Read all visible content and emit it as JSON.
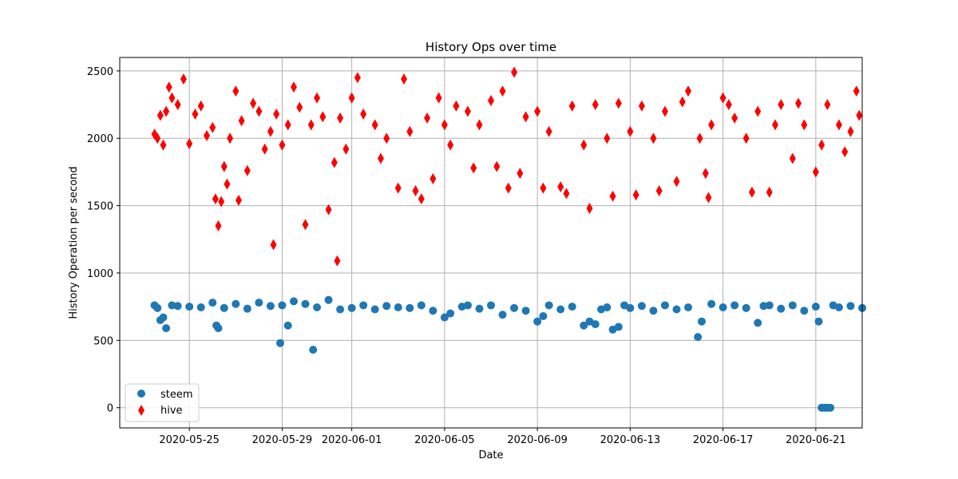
{
  "chart_data": {
    "type": "scatter",
    "title": "History Ops over time",
    "xlabel": "Date",
    "ylabel": "History Operation per second",
    "x_axis": {
      "type": "date",
      "range": [
        "2020-05-22",
        "2020-06-23"
      ]
    },
    "ylim": [
      -150,
      2600
    ],
    "x_ticks": [
      "2020-05-25",
      "2020-05-29",
      "2020-06-01",
      "2020-06-05",
      "2020-06-09",
      "2020-06-13",
      "2020-06-17",
      "2020-06-21"
    ],
    "y_ticks": [
      0,
      500,
      1000,
      1500,
      2000,
      2500
    ],
    "grid": true,
    "legend": {
      "position": "lower-left"
    },
    "series": [
      {
        "name": "steem",
        "color": "#1f77b4",
        "marker": "circle",
        "points": [
          [
            "2020-05-23 12:00",
            760
          ],
          [
            "2020-05-23 15:00",
            740
          ],
          [
            "2020-05-23 18:00",
            650
          ],
          [
            "2020-05-23 21:00",
            670
          ],
          [
            "2020-05-24 00:00",
            590
          ],
          [
            "2020-05-24 06:00",
            760
          ],
          [
            "2020-05-24 12:00",
            755
          ],
          [
            "2020-05-25 00:00",
            750
          ],
          [
            "2020-05-25 12:00",
            745
          ],
          [
            "2020-05-26 00:00",
            780
          ],
          [
            "2020-05-26 04:00",
            610
          ],
          [
            "2020-05-26 06:00",
            590
          ],
          [
            "2020-05-26 12:00",
            740
          ],
          [
            "2020-05-27 00:00",
            770
          ],
          [
            "2020-05-27 12:00",
            735
          ],
          [
            "2020-05-28 00:00",
            780
          ],
          [
            "2020-05-28 12:00",
            755
          ],
          [
            "2020-05-29 00:00",
            760
          ],
          [
            "2020-05-28 22:00",
            480
          ],
          [
            "2020-05-29 06:00",
            610
          ],
          [
            "2020-05-29 12:00",
            790
          ],
          [
            "2020-05-30 00:00",
            770
          ],
          [
            "2020-05-30 08:00",
            430
          ],
          [
            "2020-05-30 12:00",
            745
          ],
          [
            "2020-05-31 00:00",
            800
          ],
          [
            "2020-05-31 12:00",
            730
          ],
          [
            "2020-06-01 00:00",
            740
          ],
          [
            "2020-06-01 12:00",
            760
          ],
          [
            "2020-06-02 00:00",
            730
          ],
          [
            "2020-06-02 12:00",
            755
          ],
          [
            "2020-06-03 00:00",
            745
          ],
          [
            "2020-06-03 12:00",
            740
          ],
          [
            "2020-06-04 00:00",
            760
          ],
          [
            "2020-06-04 12:00",
            720
          ],
          [
            "2020-06-05 00:00",
            670
          ],
          [
            "2020-06-05 06:00",
            700
          ],
          [
            "2020-06-05 18:00",
            750
          ],
          [
            "2020-06-06 00:00",
            760
          ],
          [
            "2020-06-06 12:00",
            735
          ],
          [
            "2020-06-07 00:00",
            760
          ],
          [
            "2020-06-07 12:00",
            690
          ],
          [
            "2020-06-08 00:00",
            740
          ],
          [
            "2020-06-08 12:00",
            720
          ],
          [
            "2020-06-09 00:00",
            640
          ],
          [
            "2020-06-09 06:00",
            680
          ],
          [
            "2020-06-09 12:00",
            760
          ],
          [
            "2020-06-10 00:00",
            730
          ],
          [
            "2020-06-10 12:00",
            750
          ],
          [
            "2020-06-11 00:00",
            610
          ],
          [
            "2020-06-11 06:00",
            640
          ],
          [
            "2020-06-11 12:00",
            620
          ],
          [
            "2020-06-11 18:00",
            730
          ],
          [
            "2020-06-12 00:00",
            745
          ],
          [
            "2020-06-12 06:00",
            580
          ],
          [
            "2020-06-12 12:00",
            600
          ],
          [
            "2020-06-12 18:00",
            760
          ],
          [
            "2020-06-13 00:00",
            740
          ],
          [
            "2020-06-13 12:00",
            755
          ],
          [
            "2020-06-14 00:00",
            720
          ],
          [
            "2020-06-14 12:00",
            760
          ],
          [
            "2020-06-15 00:00",
            730
          ],
          [
            "2020-06-15 12:00",
            745
          ],
          [
            "2020-06-15 22:00",
            525
          ],
          [
            "2020-06-16 02:00",
            640
          ],
          [
            "2020-06-16 12:00",
            770
          ],
          [
            "2020-06-17 00:00",
            745
          ],
          [
            "2020-06-17 12:00",
            760
          ],
          [
            "2020-06-18 00:00",
            740
          ],
          [
            "2020-06-18 12:00",
            630
          ],
          [
            "2020-06-18 18:00",
            755
          ],
          [
            "2020-06-19 00:00",
            760
          ],
          [
            "2020-06-19 12:00",
            735
          ],
          [
            "2020-06-20 00:00",
            760
          ],
          [
            "2020-06-20 12:00",
            720
          ],
          [
            "2020-06-21 00:00",
            750
          ],
          [
            "2020-06-21 03:00",
            640
          ],
          [
            "2020-06-21 06:00",
            0
          ],
          [
            "2020-06-21 09:00",
            0
          ],
          [
            "2020-06-21 12:00",
            0
          ],
          [
            "2020-06-21 15:00",
            0
          ],
          [
            "2020-06-21 18:00",
            760
          ],
          [
            "2020-06-22 00:00",
            745
          ],
          [
            "2020-06-22 12:00",
            755
          ],
          [
            "2020-06-23 00:00",
            740
          ]
        ]
      },
      {
        "name": "hive",
        "color": "#ff0000",
        "marker": "thin_diamond",
        "points": [
          [
            "2020-05-23 12:00",
            2030
          ],
          [
            "2020-05-23 15:00",
            2000
          ],
          [
            "2020-05-23 18:00",
            2170
          ],
          [
            "2020-05-23 21:00",
            1950
          ],
          [
            "2020-05-24 00:00",
            2200
          ],
          [
            "2020-05-24 03:00",
            2380
          ],
          [
            "2020-05-24 06:00",
            2300
          ],
          [
            "2020-05-24 12:00",
            2250
          ],
          [
            "2020-05-24 18:00",
            2440
          ],
          [
            "2020-05-25 00:00",
            1960
          ],
          [
            "2020-05-25 06:00",
            2180
          ],
          [
            "2020-05-25 12:00",
            2240
          ],
          [
            "2020-05-25 18:00",
            2020
          ],
          [
            "2020-05-26 00:00",
            2080
          ],
          [
            "2020-05-26 03:00",
            1550
          ],
          [
            "2020-05-26 06:00",
            1350
          ],
          [
            "2020-05-26 09:00",
            1530
          ],
          [
            "2020-05-26 12:00",
            1790
          ],
          [
            "2020-05-26 15:00",
            1660
          ],
          [
            "2020-05-26 18:00",
            2000
          ],
          [
            "2020-05-27 00:00",
            2350
          ],
          [
            "2020-05-27 03:00",
            1540
          ],
          [
            "2020-05-27 06:00",
            2130
          ],
          [
            "2020-05-27 12:00",
            1760
          ],
          [
            "2020-05-27 18:00",
            2260
          ],
          [
            "2020-05-28 00:00",
            2200
          ],
          [
            "2020-05-28 06:00",
            1920
          ],
          [
            "2020-05-28 12:00",
            2050
          ],
          [
            "2020-05-28 15:00",
            1210
          ],
          [
            "2020-05-28 18:00",
            2180
          ],
          [
            "2020-05-29 00:00",
            1950
          ],
          [
            "2020-05-29 06:00",
            2100
          ],
          [
            "2020-05-29 12:00",
            2380
          ],
          [
            "2020-05-29 18:00",
            2230
          ],
          [
            "2020-05-30 00:00",
            1360
          ],
          [
            "2020-05-30 06:00",
            2100
          ],
          [
            "2020-05-30 12:00",
            2300
          ],
          [
            "2020-05-30 18:00",
            2160
          ],
          [
            "2020-05-31 00:00",
            1470
          ],
          [
            "2020-05-31 06:00",
            1820
          ],
          [
            "2020-05-31 09:00",
            1090
          ],
          [
            "2020-05-31 12:00",
            2150
          ],
          [
            "2020-05-31 18:00",
            1920
          ],
          [
            "2020-06-01 00:00",
            2300
          ],
          [
            "2020-06-01 06:00",
            2450
          ],
          [
            "2020-06-01 12:00",
            2180
          ],
          [
            "2020-06-02 00:00",
            2100
          ],
          [
            "2020-06-02 06:00",
            1850
          ],
          [
            "2020-06-02 12:00",
            2000
          ],
          [
            "2020-06-03 00:00",
            1630
          ],
          [
            "2020-06-03 06:00",
            2440
          ],
          [
            "2020-06-03 12:00",
            2050
          ],
          [
            "2020-06-03 18:00",
            1610
          ],
          [
            "2020-06-04 00:00",
            1550
          ],
          [
            "2020-06-04 06:00",
            2150
          ],
          [
            "2020-06-04 12:00",
            1700
          ],
          [
            "2020-06-04 18:00",
            2300
          ],
          [
            "2020-06-05 00:00",
            2100
          ],
          [
            "2020-06-05 06:00",
            1950
          ],
          [
            "2020-06-05 12:00",
            2240
          ],
          [
            "2020-06-06 00:00",
            2200
          ],
          [
            "2020-06-06 06:00",
            1780
          ],
          [
            "2020-06-06 12:00",
            2100
          ],
          [
            "2020-06-07 00:00",
            2280
          ],
          [
            "2020-06-07 06:00",
            1790
          ],
          [
            "2020-06-07 12:00",
            2350
          ],
          [
            "2020-06-07 18:00",
            1630
          ],
          [
            "2020-06-08 00:00",
            2490
          ],
          [
            "2020-06-08 06:00",
            1740
          ],
          [
            "2020-06-08 12:00",
            2160
          ],
          [
            "2020-06-09 00:00",
            2200
          ],
          [
            "2020-06-09 06:00",
            1630
          ],
          [
            "2020-06-09 12:00",
            2050
          ],
          [
            "2020-06-10 00:00",
            1640
          ],
          [
            "2020-06-10 06:00",
            1590
          ],
          [
            "2020-06-10 12:00",
            2240
          ],
          [
            "2020-06-11 00:00",
            1950
          ],
          [
            "2020-06-11 06:00",
            1480
          ],
          [
            "2020-06-11 12:00",
            2250
          ],
          [
            "2020-06-12 00:00",
            2000
          ],
          [
            "2020-06-12 06:00",
            1570
          ],
          [
            "2020-06-12 12:00",
            2260
          ],
          [
            "2020-06-13 00:00",
            2050
          ],
          [
            "2020-06-13 06:00",
            1580
          ],
          [
            "2020-06-13 12:00",
            2240
          ],
          [
            "2020-06-14 00:00",
            2000
          ],
          [
            "2020-06-14 06:00",
            1610
          ],
          [
            "2020-06-14 12:00",
            2200
          ],
          [
            "2020-06-15 00:00",
            1680
          ],
          [
            "2020-06-15 06:00",
            2270
          ],
          [
            "2020-06-15 12:00",
            2350
          ],
          [
            "2020-06-16 00:00",
            2000
          ],
          [
            "2020-06-16 06:00",
            1740
          ],
          [
            "2020-06-16 09:00",
            1560
          ],
          [
            "2020-06-16 12:00",
            2100
          ],
          [
            "2020-06-17 00:00",
            2300
          ],
          [
            "2020-06-17 06:00",
            2250
          ],
          [
            "2020-06-17 12:00",
            2150
          ],
          [
            "2020-06-18 00:00",
            2000
          ],
          [
            "2020-06-18 06:00",
            1600
          ],
          [
            "2020-06-18 12:00",
            2200
          ],
          [
            "2020-06-19 00:00",
            1600
          ],
          [
            "2020-06-19 06:00",
            2100
          ],
          [
            "2020-06-19 12:00",
            2250
          ],
          [
            "2020-06-20 00:00",
            1850
          ],
          [
            "2020-06-20 06:00",
            2260
          ],
          [
            "2020-06-20 12:00",
            2100
          ],
          [
            "2020-06-21 00:00",
            1750
          ],
          [
            "2020-06-21 06:00",
            1950
          ],
          [
            "2020-06-21 12:00",
            2250
          ],
          [
            "2020-06-22 00:00",
            2100
          ],
          [
            "2020-06-22 06:00",
            1900
          ],
          [
            "2020-06-22 12:00",
            2050
          ],
          [
            "2020-06-22 18:00",
            2350
          ],
          [
            "2020-06-22 21:00",
            2170
          ]
        ]
      }
    ]
  }
}
